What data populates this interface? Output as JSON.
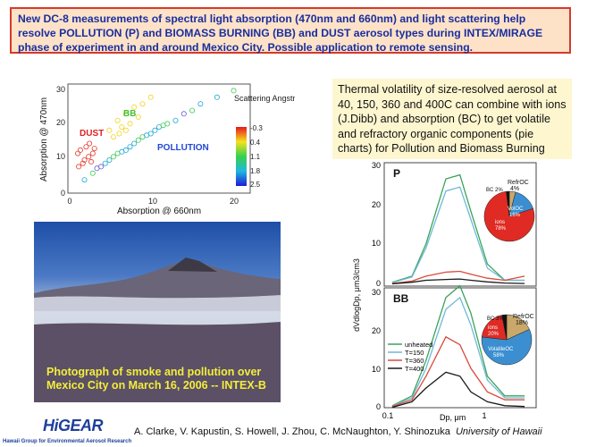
{
  "header": {
    "text": "New DC-8 measurements of spectral light absorption (470nm and 660nm) and light scattering help resolve POLLUTION (P) and BIOMASS BURNING (BB) and DUST aerosol types during INTEX/MIRAGE phase of experiment in and around Mexico City.      Possible application to remote sensing."
  },
  "info_box": {
    "text": "Thermal volatility of size-resolved aerosol at 40, 150, 360 and 400C can combine with ions (J.Dibb) and absorption (BC) to get volatile and refractory organic components (pie charts) for Pollution and Biomass Burning"
  },
  "photo": {
    "caption": "Photograph of smoke and pollution over Mexico City on March 16, 2006 -- INTEX-B"
  },
  "footer": {
    "logo": "HiGEAR",
    "logo_sub": "Hawaii Group for Environmental Aerosol Research",
    "authors": "A. Clarke, V. Kapustin, S. Howell, J. Zhou, C. McNaughton, Y. Shinozuka",
    "affiliation": "University of Hawaii"
  },
  "chart_data": [
    {
      "type": "scatter",
      "xlabel": "Absorption @ 660nm",
      "ylabel": "Absorption @ 470nm",
      "xticks": [
        "0",
        "10",
        "20"
      ],
      "yticks": [
        "0",
        "10",
        "20",
        "30"
      ],
      "xlim": [
        0,
        22
      ],
      "ylim": [
        0,
        33
      ],
      "annotations": [
        "DUST",
        "BB",
        "POLLUTION"
      ],
      "colorbar": {
        "title": "Scattering Angstrom",
        "ticks": [
          "-0.3",
          "0.4",
          "1.1",
          "1.8",
          "2.5"
        ]
      },
      "groups": [
        {
          "name": "DUST",
          "points": [
            [
              1.2,
              12
            ],
            [
              1.5,
              13
            ],
            [
              2,
              10
            ],
            [
              2.5,
              11
            ],
            [
              1.8,
              9
            ],
            [
              2.2,
              14
            ],
            [
              3,
              12
            ],
            [
              2.8,
              9.5
            ],
            [
              1.3,
              8
            ],
            [
              3.2,
              13.5
            ],
            [
              2.6,
              15
            ]
          ]
        },
        {
          "name": "BB",
          "points": [
            [
              5,
              19
            ],
            [
              6,
              22
            ],
            [
              7,
              24
            ],
            [
              6.5,
              20
            ],
            [
              8,
              26
            ],
            [
              5.5,
              17
            ],
            [
              7.5,
              21
            ],
            [
              9,
              27
            ],
            [
              6.2,
              18
            ],
            [
              8.5,
              23
            ],
            [
              10,
              29
            ],
            [
              7,
              19
            ]
          ]
        },
        {
          "name": "POLLUTION",
          "points": [
            [
              2,
              4
            ],
            [
              3,
              6
            ],
            [
              4,
              8
            ],
            [
              5,
              10
            ],
            [
              6,
              12
            ],
            [
              7,
              13
            ],
            [
              8,
              15
            ],
            [
              9,
              17
            ],
            [
              10,
              18
            ],
            [
              11,
              20
            ],
            [
              12,
              21
            ],
            [
              13,
              22
            ],
            [
              14,
              24
            ],
            [
              15,
              25
            ],
            [
              16,
              27
            ],
            [
              18,
              29
            ],
            [
              20,
              31
            ],
            [
              3.5,
              7.5
            ],
            [
              4.5,
              9
            ],
            [
              5.5,
              11
            ],
            [
              6.5,
              12.5
            ],
            [
              7.5,
              14
            ],
            [
              8.5,
              16
            ],
            [
              9.5,
              17.5
            ],
            [
              10.5,
              19
            ],
            [
              11.5,
              20.5
            ]
          ]
        }
      ]
    },
    {
      "type": "line",
      "title": "P",
      "ylabel": "dVdlogDp, μm3/cm3",
      "yticks": [
        "0",
        "10",
        "20",
        "30"
      ],
      "ylim": [
        0,
        30
      ],
      "xscale": "log",
      "x": [
        0.1,
        0.15,
        0.2,
        0.3,
        0.4,
        0.5,
        0.7,
        1.0,
        1.5
      ],
      "series": [
        {
          "values": [
            0.5,
            2,
            10,
            26,
            27,
            18,
            5,
            1,
            1
          ]
        },
        {
          "values": [
            0.4,
            1.8,
            9,
            23,
            24,
            16,
            4,
            1,
            1
          ]
        },
        {
          "values": [
            0.2,
            0.8,
            2,
            3,
            3.2,
            2.5,
            1.5,
            1,
            2
          ]
        },
        {
          "values": [
            0.1,
            0.5,
            1,
            1.2,
            1.3,
            1,
            0.6,
            0.3,
            0.2
          ]
        }
      ],
      "pie": [
        {
          "label": "RefrOC 4%",
          "value": 4,
          "color": "#c9a86a"
        },
        {
          "label": "VolOC 16%",
          "value": 16,
          "color": "#3b8fd0"
        },
        {
          "label": "ions 78%",
          "value": 78,
          "color": "#e02b24"
        },
        {
          "label": "BC 2%",
          "value": 2,
          "color": "#111111"
        }
      ],
      "pie_labels": [
        "RefrOC",
        "4%",
        "BC 2%",
        "VolOC",
        "16%",
        "ions",
        "78%"
      ]
    },
    {
      "type": "line",
      "title": "BB",
      "xlabel": "Dp, μm",
      "yticks": [
        "0",
        "10",
        "20",
        "30"
      ],
      "xticks": [
        "0.1",
        "1"
      ],
      "ylim": [
        0,
        30
      ],
      "xscale": "log",
      "x": [
        0.1,
        0.15,
        0.2,
        0.3,
        0.4,
        0.5,
        0.7,
        1.0,
        1.5
      ],
      "legend": [
        "unheated",
        "T=150",
        "T=360",
        "T=400"
      ],
      "series_colors": [
        "#3aa35a",
        "#6fb9d8",
        "#d94a3a",
        "#1a1a1a"
      ],
      "series": [
        {
          "name": "unheated",
          "values": [
            0.5,
            3,
            12,
            28,
            31,
            24,
            8,
            3,
            3
          ]
        },
        {
          "name": "T=150",
          "values": [
            0.4,
            2.5,
            10,
            25,
            28,
            21,
            7,
            2.5,
            2.5
          ]
        },
        {
          "name": "T=360",
          "values": [
            0.3,
            2,
            8,
            18,
            16,
            10,
            4,
            2,
            2
          ]
        },
        {
          "name": "T=400",
          "values": [
            0.1,
            1.5,
            5,
            9,
            8,
            4,
            1.5,
            0.5,
            0.3
          ]
        }
      ],
      "pie": [
        {
          "label": "RefrOC 18%",
          "value": 18,
          "color": "#c9a86a"
        },
        {
          "label": "VolatileOC 58%",
          "value": 58,
          "color": "#3b8fd0"
        },
        {
          "label": "ions 20%",
          "value": 20,
          "color": "#e02b24"
        },
        {
          "label": "BC 3%",
          "value": 3,
          "color": "#111111"
        }
      ],
      "pie_labels": [
        "BC 3%",
        "RefrOC",
        "18%",
        "ions",
        "20%",
        "VolatileOC",
        "58%"
      ]
    }
  ]
}
